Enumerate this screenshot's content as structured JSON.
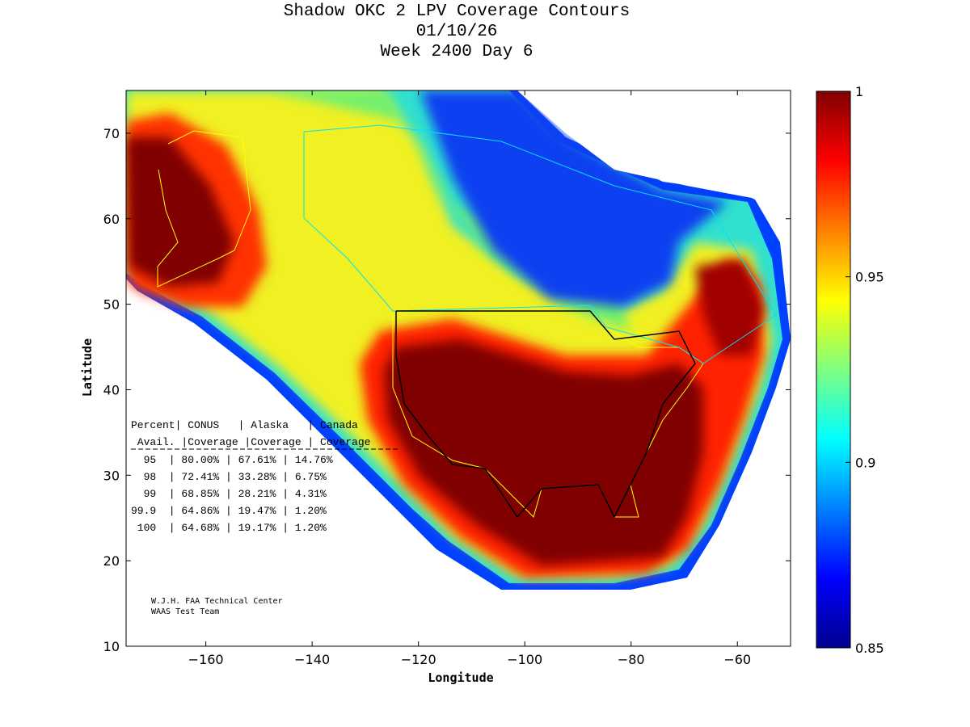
{
  "chart_data": {
    "type": "heatmap",
    "title": [
      "Shadow OKC 2 LPV Coverage Contours",
      "01/10/26",
      "Week 2400 Day 6"
    ],
    "xlabel": "Longitude",
    "ylabel": "Latitude",
    "xlim": [
      -175,
      -50
    ],
    "ylim": [
      10,
      75
    ],
    "xticks": [
      -160,
      -140,
      -120,
      -100,
      -80,
      -60
    ],
    "yticks": [
      10,
      20,
      30,
      40,
      50,
      60,
      70
    ],
    "colorbar": {
      "range": [
        0.85,
        1
      ],
      "ticks": [
        "1",
        "0.95",
        "0.9",
        "0.85"
      ],
      "colormap": "jet"
    },
    "table": {
      "header1": [
        "Percent",
        "CONUS",
        "Alaska",
        "Canada"
      ],
      "header2": [
        "Avail.",
        "Coverage",
        "Coverage",
        "Coverage"
      ],
      "rows": [
        [
          "95",
          "80.00%",
          "67.61%",
          "14.76%"
        ],
        [
          "98",
          "72.41%",
          "33.28%",
          "6.75%"
        ],
        [
          "99",
          "68.85%",
          "28.21%",
          "4.31%"
        ],
        [
          "99.9",
          "64.86%",
          "19.47%",
          "1.20%"
        ],
        [
          "100",
          "64.68%",
          "19.17%",
          "1.20%"
        ]
      ]
    },
    "credits": [
      "W.J.H. FAA Technical Center",
      "WAAS Test Team"
    ]
  }
}
